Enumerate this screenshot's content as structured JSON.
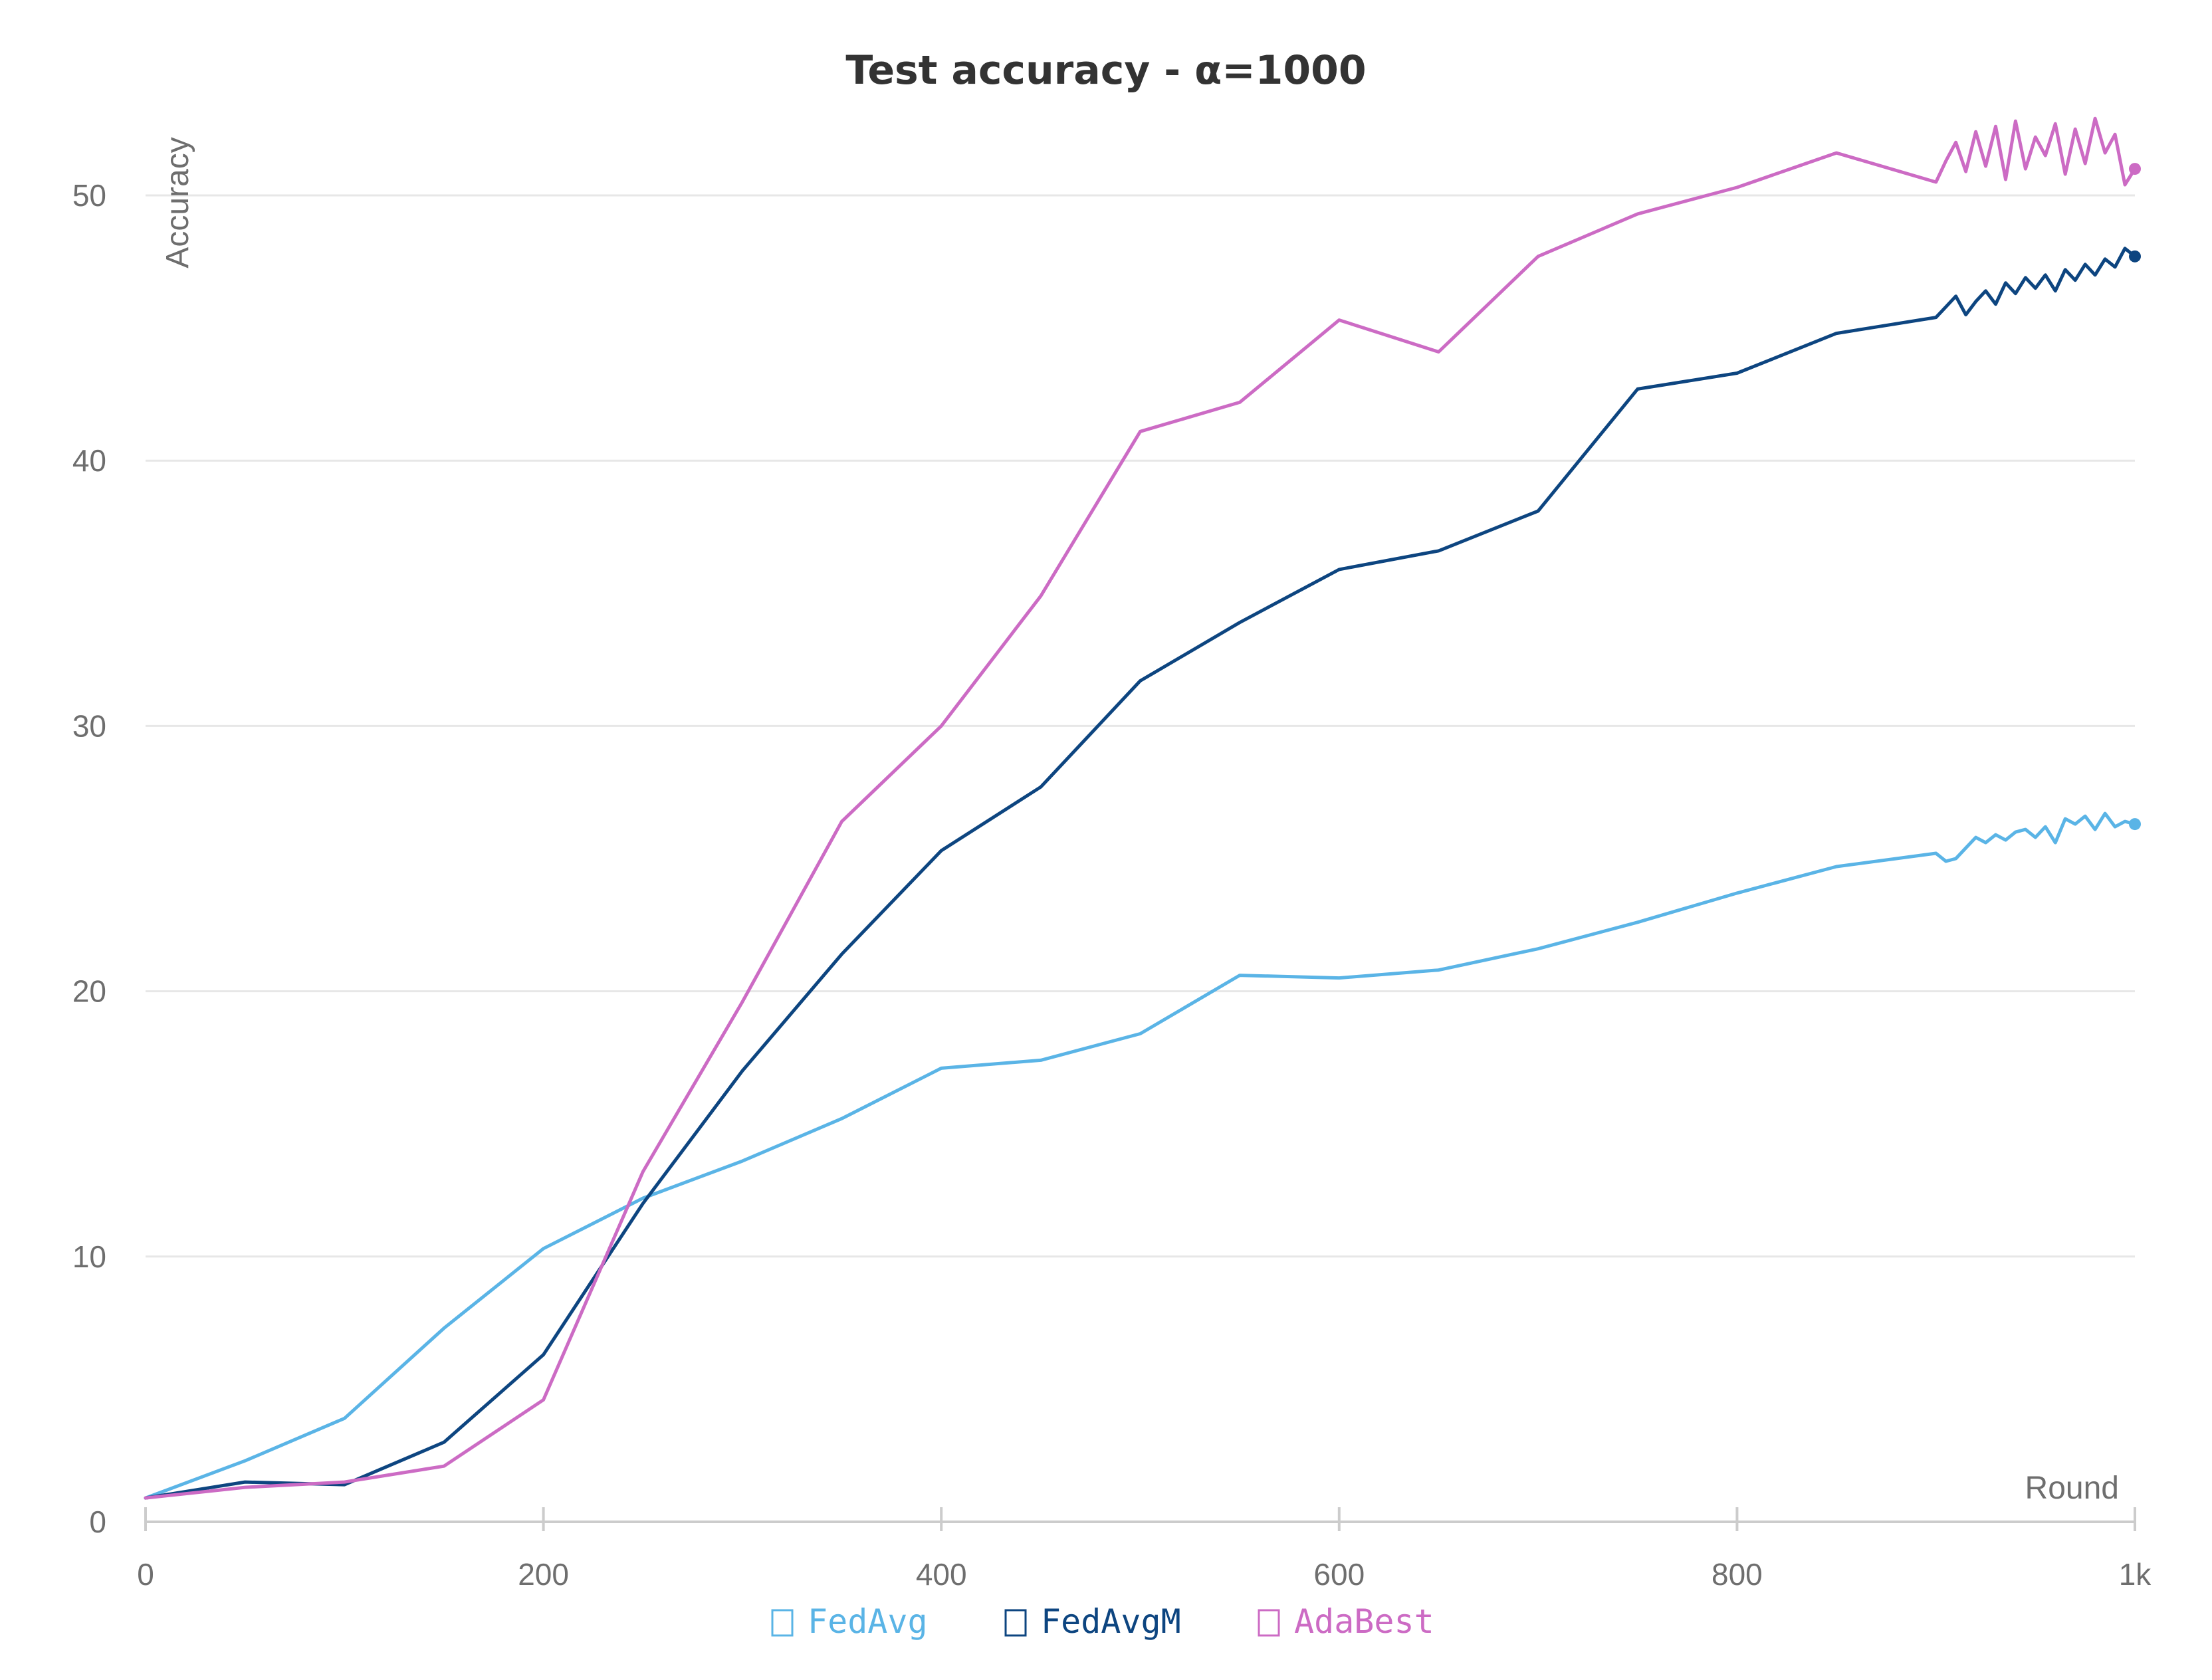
{
  "chart_data": {
    "type": "line",
    "title": "Test accuracy - α=1000",
    "xlabel": "Round",
    "ylabel": "Accuracy",
    "xlim": [
      0,
      1000
    ],
    "ylim": [
      0,
      55
    ],
    "x_ticks": [
      0,
      200,
      400,
      600,
      800,
      1000
    ],
    "x_tick_labels": [
      "0",
      "200",
      "400",
      "600",
      "800",
      "1k"
    ],
    "y_ticks": [
      0,
      10,
      20,
      30,
      40,
      50
    ],
    "y_tick_labels": [
      "0",
      "10",
      "20",
      "30",
      "40",
      "50"
    ],
    "grid": true,
    "legend_position": "bottom",
    "series": [
      {
        "name": "FedAvg",
        "color": "#5ab4e6",
        "x": [
          0,
          50,
          100,
          150,
          200,
          250,
          300,
          350,
          400,
          450,
          500,
          550,
          600,
          650,
          700,
          750,
          800,
          850,
          900,
          905,
          910,
          915,
          920,
          925,
          930,
          935,
          940,
          945,
          950,
          955,
          960,
          965,
          970,
          975,
          980,
          985,
          990,
          995,
          1000
        ],
        "y": [
          0.9,
          2.3,
          3.9,
          7.3,
          10.3,
          12.2,
          13.6,
          15.2,
          17.1,
          17.4,
          18.4,
          20.6,
          20.5,
          20.8,
          21.6,
          22.6,
          23.7,
          24.7,
          25.2,
          24.9,
          25.0,
          25.4,
          25.8,
          25.6,
          25.9,
          25.7,
          26.0,
          26.1,
          25.8,
          26.2,
          25.6,
          26.5,
          26.3,
          26.6,
          26.1,
          26.7,
          26.2,
          26.4,
          26.3
        ]
      },
      {
        "name": "FedAvgM",
        "color": "#0d4580",
        "x": [
          0,
          50,
          100,
          150,
          200,
          250,
          300,
          350,
          400,
          450,
          500,
          550,
          600,
          650,
          700,
          750,
          800,
          850,
          900,
          905,
          910,
          915,
          920,
          925,
          930,
          935,
          940,
          945,
          950,
          955,
          960,
          965,
          970,
          975,
          980,
          985,
          990,
          995,
          1000
        ],
        "y": [
          0.9,
          1.5,
          1.4,
          3.0,
          6.3,
          12.0,
          17.0,
          21.4,
          25.3,
          27.7,
          31.7,
          33.9,
          35.9,
          36.6,
          38.1,
          42.7,
          43.3,
          44.8,
          45.4,
          45.8,
          46.2,
          45.5,
          46.0,
          46.4,
          45.9,
          46.7,
          46.3,
          46.9,
          46.5,
          47.0,
          46.4,
          47.2,
          46.8,
          47.4,
          47.0,
          47.6,
          47.3,
          48.0,
          47.7
        ]
      },
      {
        "name": "AdaBest",
        "color": "#cc6bc4",
        "x": [
          0,
          50,
          100,
          150,
          200,
          250,
          300,
          350,
          400,
          450,
          500,
          550,
          600,
          650,
          700,
          750,
          800,
          850,
          900,
          905,
          910,
          915,
          920,
          925,
          930,
          935,
          940,
          945,
          950,
          955,
          960,
          965,
          970,
          975,
          980,
          985,
          990,
          995,
          1000
        ],
        "y": [
          0.9,
          1.3,
          1.5,
          2.1,
          4.6,
          13.2,
          19.6,
          26.4,
          30.0,
          34.9,
          41.1,
          42.2,
          45.3,
          44.1,
          47.7,
          49.3,
          50.3,
          51.6,
          50.5,
          51.3,
          52.0,
          50.9,
          52.4,
          51.1,
          52.6,
          50.6,
          52.8,
          51.0,
          52.2,
          51.5,
          52.7,
          50.8,
          52.5,
          51.2,
          52.9,
          51.6,
          52.3,
          50.4,
          51.0
        ]
      }
    ]
  }
}
